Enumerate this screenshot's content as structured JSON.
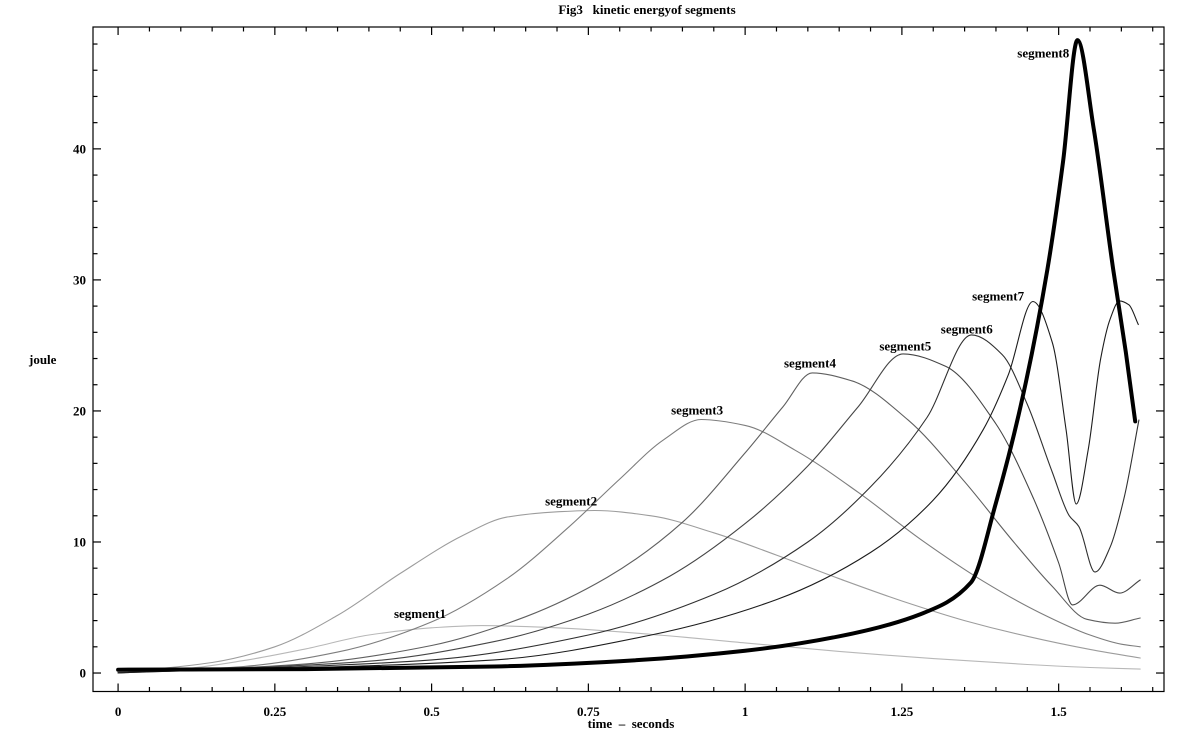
{
  "figure": {
    "background": "#ffffff",
    "text_color": "#000000"
  },
  "chart_data": {
    "type": "line",
    "title": "Fig3   kinetic energyof segments",
    "xlabel": "time  –  seconds",
    "ylabel": "joule",
    "xlim": [
      -0.04,
      1.668
    ],
    "ylim": [
      -1.41,
      49.3
    ],
    "grid": false,
    "framed": true,
    "legend": "labels drawn beside each curve",
    "x_ticks": {
      "major": [
        0,
        0.25,
        0.5,
        0.75,
        1,
        1.25,
        1.5
      ],
      "labels": [
        "0",
        "0.25",
        "0.5",
        "0.75",
        "1",
        "1.25",
        "1.5"
      ],
      "minor_step": 0.05,
      "minor_range": [
        0,
        1.65
      ]
    },
    "y_ticks": {
      "major": [
        0,
        10,
        20,
        30,
        40
      ],
      "labels": [
        "0",
        "10",
        "20",
        "30",
        "40"
      ],
      "minor_step": 2,
      "minor_range": [
        0,
        48
      ]
    },
    "series": [
      {
        "name": "segment1",
        "color": "#b8b8b8",
        "width": 1.1,
        "label": {
          "t": 0.44,
          "v": 4.95
        },
        "points": [
          [
            0,
            0.05
          ],
          [
            0.1,
            0.3
          ],
          [
            0.2,
            0.95
          ],
          [
            0.3,
            1.85
          ],
          [
            0.4,
            2.9
          ],
          [
            0.5,
            3.45
          ],
          [
            0.58,
            3.62
          ],
          [
            0.7,
            3.45
          ],
          [
            0.85,
            2.95
          ],
          [
            1.0,
            2.3
          ],
          [
            1.15,
            1.65
          ],
          [
            1.3,
            1.1
          ],
          [
            1.45,
            0.65
          ],
          [
            1.55,
            0.42
          ],
          [
            1.63,
            0.3
          ]
        ]
      },
      {
        "name": "segment2",
        "color": "#9c9c9c",
        "width": 1.1,
        "label": {
          "t": 0.681,
          "v": 13.5
        },
        "points": [
          [
            0,
            0.05
          ],
          [
            0.15,
            0.8
          ],
          [
            0.25,
            2.0
          ],
          [
            0.35,
            4.4
          ],
          [
            0.45,
            7.6
          ],
          [
            0.55,
            10.5
          ],
          [
            0.62,
            11.9
          ],
          [
            0.7,
            12.3
          ],
          [
            0.76,
            12.4
          ],
          [
            0.85,
            12.0
          ],
          [
            0.95,
            10.7
          ],
          [
            1.05,
            9.0
          ],
          [
            1.15,
            7.2
          ],
          [
            1.25,
            5.5
          ],
          [
            1.35,
            4.0
          ],
          [
            1.45,
            2.8
          ],
          [
            1.55,
            1.8
          ],
          [
            1.63,
            1.15
          ]
        ]
      },
      {
        "name": "segment3",
        "color": "#7d7d7d",
        "width": 1.1,
        "label": {
          "t": 0.882,
          "v": 20.45
        },
        "points": [
          [
            0,
            0.03
          ],
          [
            0.2,
            0.5
          ],
          [
            0.35,
            1.6
          ],
          [
            0.5,
            3.9
          ],
          [
            0.62,
            7.2
          ],
          [
            0.72,
            11.2
          ],
          [
            0.8,
            14.8
          ],
          [
            0.87,
            17.8
          ],
          [
            0.93,
            19.35
          ],
          [
            1.0,
            18.9
          ],
          [
            1.08,
            17.0
          ],
          [
            1.18,
            13.8
          ],
          [
            1.28,
            10.2
          ],
          [
            1.38,
            7.0
          ],
          [
            1.47,
            4.6
          ],
          [
            1.55,
            2.9
          ],
          [
            1.6,
            2.2
          ],
          [
            1.63,
            2.0
          ]
        ]
      },
      {
        "name": "segment4",
        "color": "#5f5f5f",
        "width": 1.1,
        "label": {
          "t": 1.062,
          "v": 24.05
        },
        "points": [
          [
            0,
            0.02
          ],
          [
            0.3,
            0.7
          ],
          [
            0.5,
            2.1
          ],
          [
            0.65,
            4.3
          ],
          [
            0.78,
            7.3
          ],
          [
            0.9,
            11.5
          ],
          [
            1.0,
            16.8
          ],
          [
            1.06,
            20.3
          ],
          [
            1.107,
            22.9
          ],
          [
            1.17,
            22.3
          ],
          [
            1.26,
            19.3
          ],
          [
            1.35,
            14.6
          ],
          [
            1.43,
            9.9
          ],
          [
            1.49,
            6.6
          ],
          [
            1.545,
            4.1
          ],
          [
            1.59,
            3.8
          ],
          [
            1.63,
            4.2
          ]
        ]
      },
      {
        "name": "segment5",
        "color": "#454545",
        "width": 1.1,
        "label": {
          "t": 1.214,
          "v": 25.35
        },
        "points": [
          [
            0,
            0.02
          ],
          [
            0.4,
            0.9
          ],
          [
            0.6,
            2.4
          ],
          [
            0.75,
            4.5
          ],
          [
            0.88,
            7.4
          ],
          [
            1.0,
            11.4
          ],
          [
            1.1,
            15.8
          ],
          [
            1.18,
            20.3
          ],
          [
            1.252,
            24.35
          ],
          [
            1.32,
            23.4
          ],
          [
            1.4,
            19.0
          ],
          [
            1.46,
            13.3
          ],
          [
            1.5,
            8.4
          ],
          [
            1.522,
            5.2
          ],
          [
            1.566,
            6.7
          ],
          [
            1.597,
            6.1
          ],
          [
            1.63,
            7.1
          ]
        ]
      },
      {
        "name": "segment6",
        "color": "#303030",
        "width": 1.1,
        "label": {
          "t": 1.312,
          "v": 26.65
        },
        "points": [
          [
            0,
            0.01
          ],
          [
            0.5,
            1.0
          ],
          [
            0.75,
            2.9
          ],
          [
            0.95,
            6.0
          ],
          [
            1.1,
            10.0
          ],
          [
            1.2,
            14.2
          ],
          [
            1.29,
            19.5
          ],
          [
            1.361,
            25.8
          ],
          [
            1.41,
            24.3
          ],
          [
            1.45,
            20.5
          ],
          [
            1.49,
            15.3
          ],
          [
            1.517,
            12.0
          ],
          [
            1.532,
            11.2
          ],
          [
            1.558,
            7.7
          ],
          [
            1.582,
            9.6
          ],
          [
            1.605,
            13.5
          ],
          [
            1.628,
            19.3
          ]
        ]
      },
      {
        "name": "segment7",
        "color": "#1c1c1c",
        "width": 1.1,
        "label": {
          "t": 1.362,
          "v": 29.15
        },
        "points": [
          [
            0,
            0.01
          ],
          [
            0.6,
            1.0
          ],
          [
            0.85,
            2.9
          ],
          [
            1.05,
            5.6
          ],
          [
            1.2,
            9.2
          ],
          [
            1.3,
            13.2
          ],
          [
            1.38,
            18.6
          ],
          [
            1.42,
            22.8
          ],
          [
            1.459,
            28.35
          ],
          [
            1.49,
            25.2
          ],
          [
            1.512,
            18.5
          ],
          [
            1.528,
            12.9
          ],
          [
            1.547,
            17.0
          ],
          [
            1.567,
            24.0
          ],
          [
            1.582,
            27.0
          ],
          [
            1.597,
            28.4
          ],
          [
            1.612,
            28.1
          ],
          [
            1.627,
            26.6
          ]
        ]
      },
      {
        "name": "segment8",
        "color": "#000000",
        "width": 4,
        "label": {
          "t": 1.434,
          "v": 47.7
        },
        "points": [
          [
            0,
            0.25
          ],
          [
            0.3,
            0.3
          ],
          [
            0.6,
            0.5
          ],
          [
            0.8,
            0.9
          ],
          [
            1.0,
            1.7
          ],
          [
            1.15,
            2.8
          ],
          [
            1.28,
            4.5
          ],
          [
            1.36,
            6.9
          ],
          [
            1.4,
            13.0
          ],
          [
            1.44,
            20.5
          ],
          [
            1.482,
            30.8
          ],
          [
            1.507,
            39.0
          ],
          [
            1.53,
            48.3
          ],
          [
            1.556,
            41.5
          ],
          [
            1.587,
            30.8
          ],
          [
            1.607,
            24.5
          ],
          [
            1.622,
            19.2
          ]
        ]
      }
    ]
  }
}
